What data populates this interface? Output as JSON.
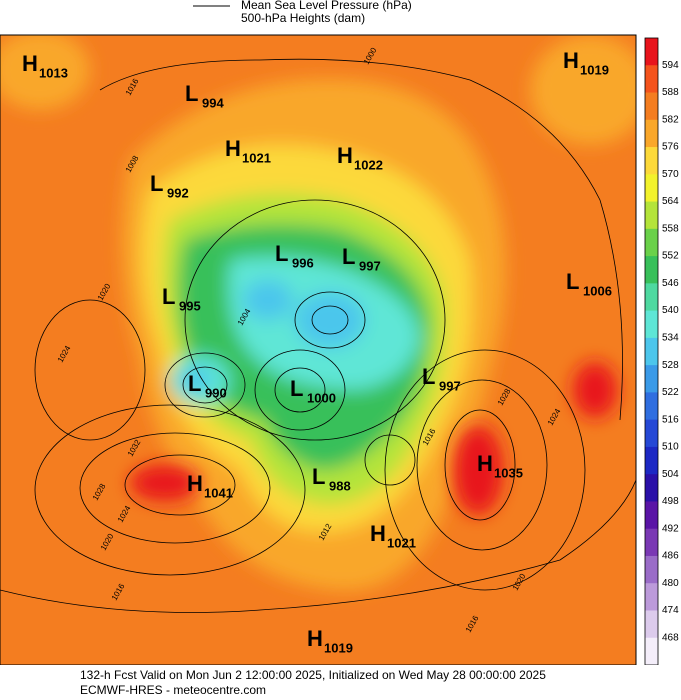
{
  "legend": {
    "items": [
      "Mean Sea Level Pressure (hPa)",
      "500-hPa Heights (dam)"
    ]
  },
  "centers": [
    {
      "letter": "H",
      "value": 1013
    },
    {
      "letter": "L",
      "value": 994
    },
    {
      "letter": "H",
      "value": 1021
    },
    {
      "letter": "H",
      "value": 1022
    },
    {
      "letter": "L",
      "value": 992
    },
    {
      "letter": "L",
      "value": 996
    },
    {
      "letter": "L",
      "value": 997
    },
    {
      "letter": "L",
      "value": 995
    },
    {
      "letter": "L",
      "value": 1006
    },
    {
      "letter": "H",
      "value": 1019
    },
    {
      "letter": "L",
      "value": 990
    },
    {
      "letter": "L",
      "value": 1000
    },
    {
      "letter": "L",
      "value": 997
    },
    {
      "letter": "H",
      "value": 1035
    },
    {
      "letter": "H",
      "value": 1041
    },
    {
      "letter": "L",
      "value": 988
    },
    {
      "letter": "H",
      "value": 1021
    },
    {
      "letter": "H",
      "value": 1019
    }
  ],
  "isobar_labels": [
    1000,
    1016,
    1008,
    1020,
    1024,
    1032,
    1028,
    1024,
    1020,
    1016,
    1028,
    1020,
    1016,
    1024,
    1012,
    1016,
    1004
  ],
  "colorbar": {
    "labels": [
      594,
      588,
      582,
      576,
      570,
      564,
      558,
      552,
      546,
      540,
      534,
      528,
      522,
      516,
      510,
      504,
      498,
      492,
      486,
      480,
      474,
      468
    ],
    "colors": [
      "#e8141c",
      "#f4531c",
      "#f47d20",
      "#f9a72a",
      "#fcd93a",
      "#f2f22c",
      "#b4e43a",
      "#6ad14a",
      "#38c05a",
      "#4ed9a0",
      "#5ee6d6",
      "#4cc6ec",
      "#3a9ae8",
      "#2f6ee0",
      "#2548d6",
      "#1c28c4",
      "#2a10a8",
      "#5a14a6",
      "#7a38b4",
      "#9a6cc8",
      "#bc9ada",
      "#dccbec",
      "#f4eefa"
    ]
  },
  "footer": {
    "line1": "132-h Fcst Valid on Mon Jun  2 12:00:00 2025, Initialized on Wed May 28 00:00:00 2025",
    "line2": "ECMWF-HRES  - meteocentre.com"
  }
}
